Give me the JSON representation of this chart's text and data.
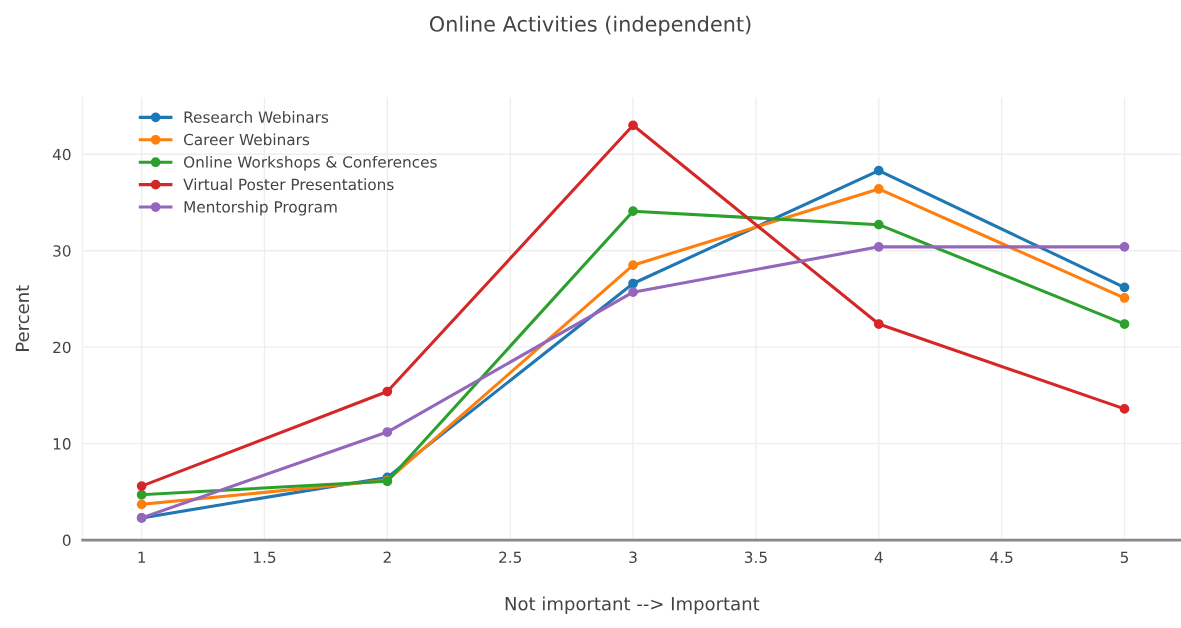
{
  "chart_data": {
    "type": "line",
    "title": "Online Activities (independent)",
    "xlabel": "Not important --> Important",
    "ylabel": "Percent",
    "x": [
      1,
      2,
      3,
      4,
      5
    ],
    "series": [
      {
        "name": "Research Webinars",
        "color": "#1f77b4",
        "values": [
          2.3,
          6.5,
          26.6,
          38.3,
          26.2
        ]
      },
      {
        "name": "Career Webinars",
        "color": "#ff7f0e",
        "values": [
          3.7,
          6.2,
          28.5,
          36.4,
          25.1
        ]
      },
      {
        "name": "Online Workshops & Conferences",
        "color": "#2ca02c",
        "values": [
          4.7,
          6.1,
          34.1,
          32.7,
          22.4
        ]
      },
      {
        "name": "Virtual Poster Presentations",
        "color": "#d62728",
        "values": [
          5.6,
          15.4,
          43.0,
          22.4,
          13.6
        ]
      },
      {
        "name": "Mentorship Program",
        "color": "#9467bd",
        "values": [
          2.3,
          11.2,
          25.7,
          30.4,
          30.4
        ]
      }
    ],
    "xlim": [
      0.76,
      5.23
    ],
    "xticks": [
      1,
      1.5,
      2,
      2.5,
      3,
      3.5,
      4,
      4.5,
      5
    ],
    "ylim": [
      0,
      45.9
    ],
    "yticks": [
      0,
      10,
      20,
      30,
      40
    ],
    "grid": true,
    "legend": "top left",
    "marker": "circle",
    "line_style": "solid"
  }
}
